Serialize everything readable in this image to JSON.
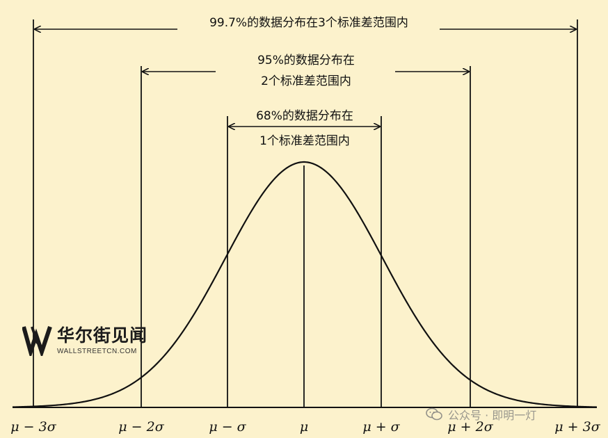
{
  "annotations": {
    "sigma3": "99.7%的数据分布在3个标准差范围内",
    "sigma2_line1": "95%的数据分布在",
    "sigma2_line2": "2个标准差范围内",
    "sigma1_line1": "68%的数据分布在",
    "sigma1_line2": "1个标准差范围内"
  },
  "ticks": [
    "μ − 3σ",
    "μ − 2σ",
    "μ − σ",
    "μ",
    "μ + σ",
    "μ + 2σ",
    "μ + 3σ"
  ],
  "watermark": {
    "name": "华尔街见闻",
    "sub": "WALLSTREETCN.COM",
    "icon": "wallstreetcn-logo-icon"
  },
  "wechat_watermark": {
    "text": "公众号 · 即明一灯",
    "icon": "wechat-icon"
  },
  "colors": {
    "background": "#fcf2cc",
    "stroke": "#111111"
  }
}
